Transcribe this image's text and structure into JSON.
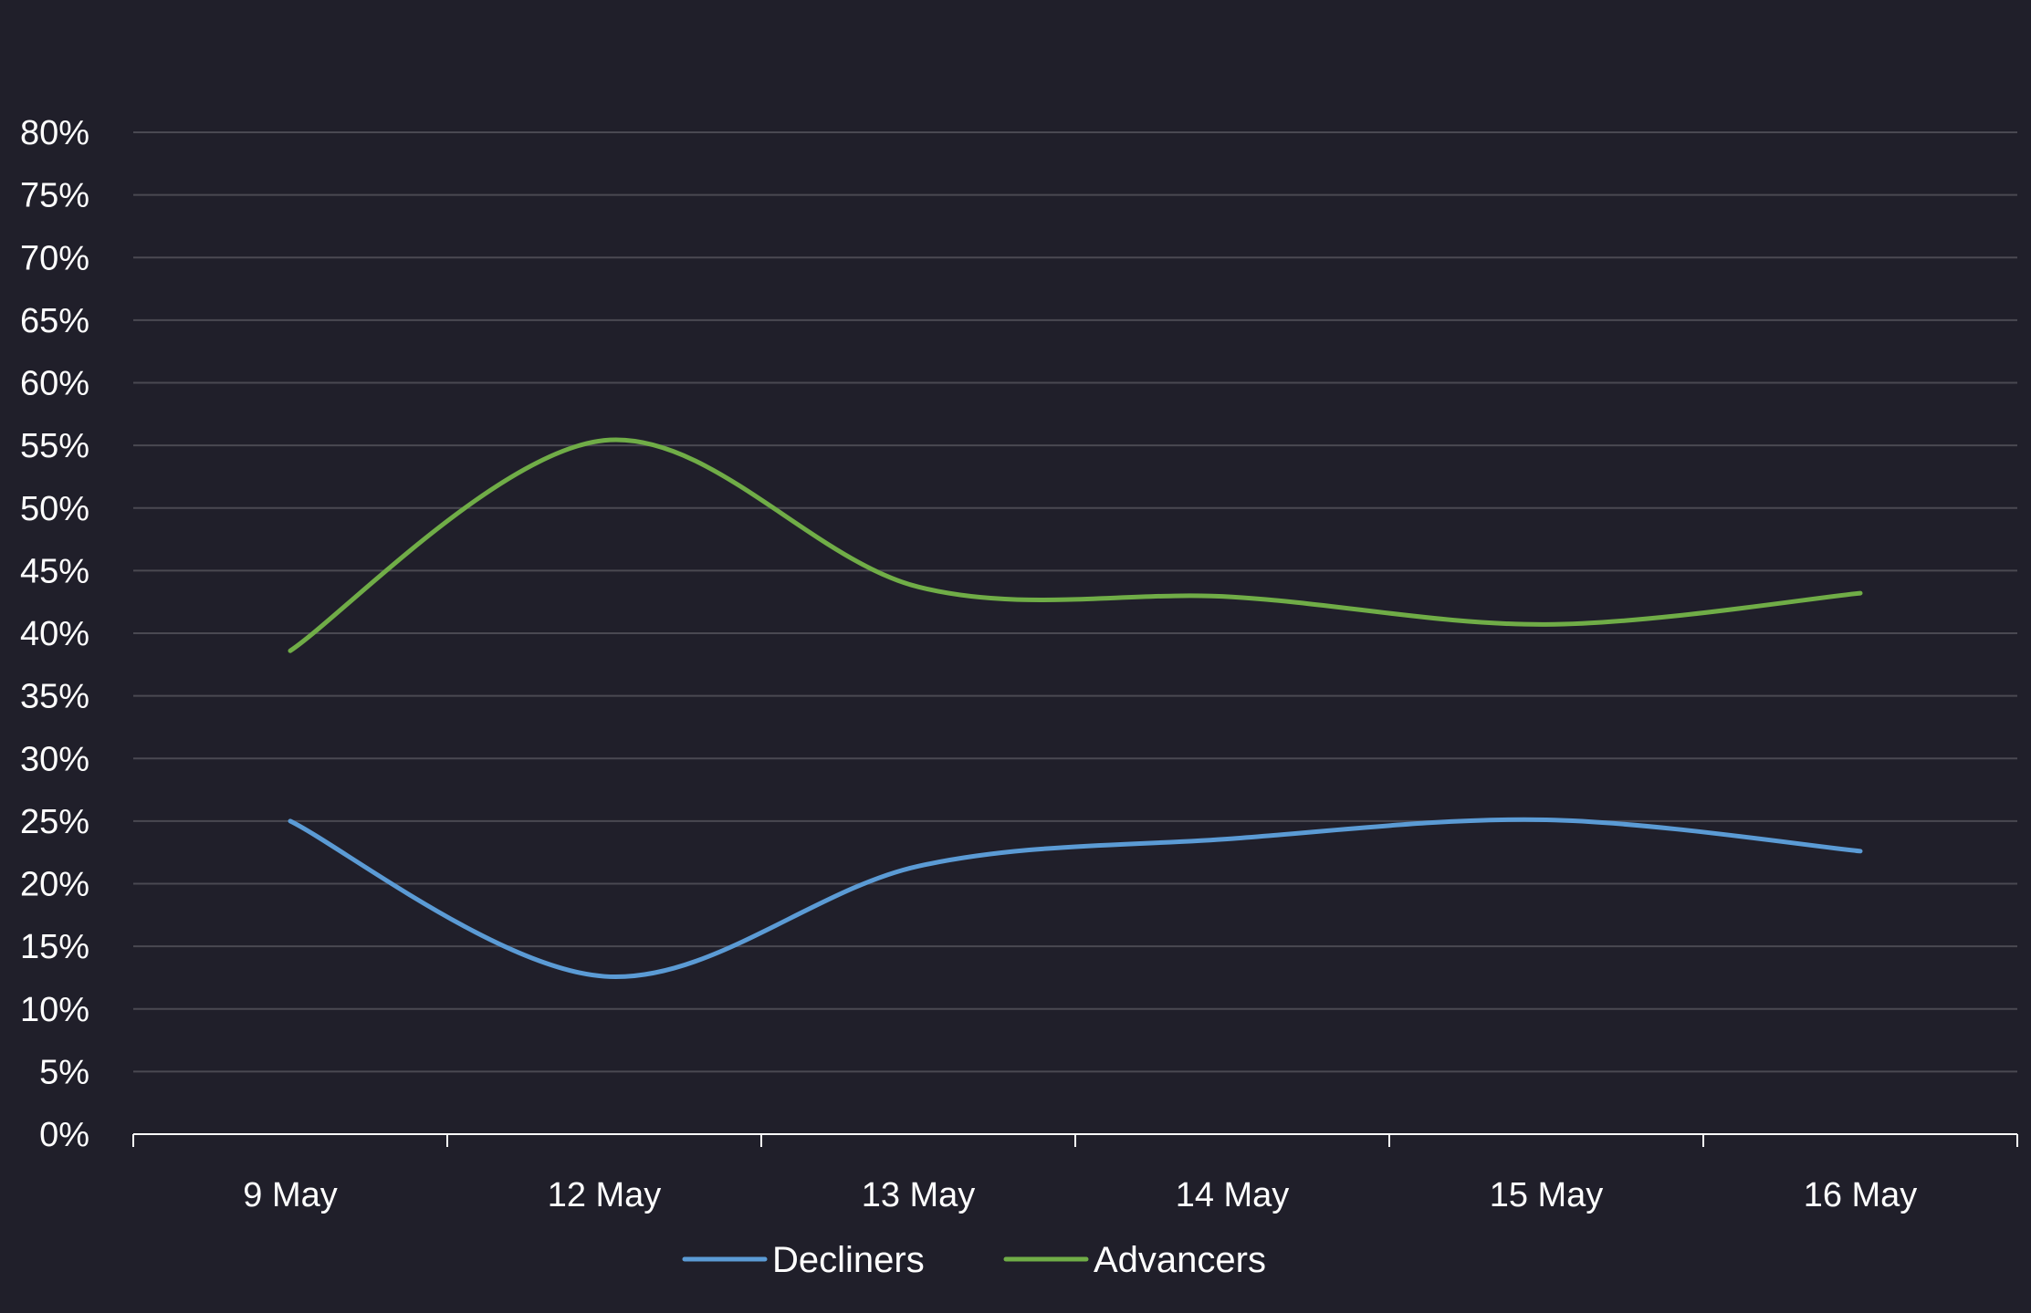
{
  "chart_data": {
    "type": "line",
    "title": "",
    "xlabel": "",
    "ylabel": "",
    "categories": [
      "9 May",
      "12 May",
      "13 May",
      "14 May",
      "15 May",
      "16 May"
    ],
    "ylim": [
      0,
      80
    ],
    "yticks": [
      "0%",
      "5%",
      "10%",
      "15%",
      "20%",
      "25%",
      "30%",
      "35%",
      "40%",
      "45%",
      "50%",
      "55%",
      "60%",
      "65%",
      "70%",
      "75%",
      "80%"
    ],
    "grid": true,
    "legend_position": "bottom",
    "series": [
      {
        "name": "Decliners",
        "color": "#5b9bd5",
        "values": [
          25.0,
          12.6,
          21.4,
          23.6,
          25.1,
          22.6
        ]
      },
      {
        "name": "Advancers",
        "color": "#70ad47",
        "values": [
          38.6,
          55.4,
          43.7,
          42.9,
          40.7,
          43.2
        ]
      }
    ]
  }
}
